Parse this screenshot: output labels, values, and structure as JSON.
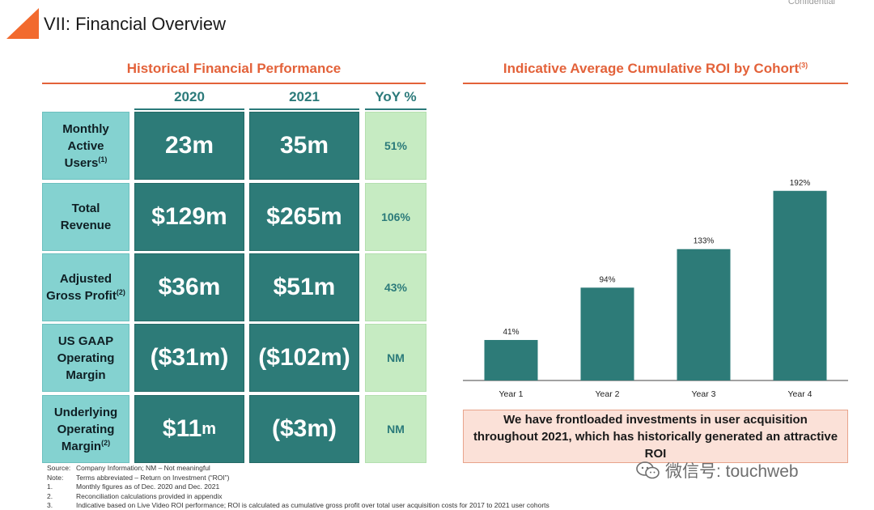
{
  "header": {
    "title": "VII: Financial Overview",
    "confidential": "Confidential",
    "brand_color": "#f26a2e"
  },
  "left_panel": {
    "title": "Historical Financial Performance",
    "columns": [
      "2020",
      "2021",
      "YoY %"
    ],
    "rows": [
      {
        "label_lines": [
          "Monthly",
          "Active",
          "Users"
        ],
        "label_sup": "(1)",
        "v2020": "23m",
        "v2021": "35m",
        "yoy": "51%"
      },
      {
        "label_lines": [
          "Total",
          "Revenue"
        ],
        "label_sup": "",
        "v2020": "$129m",
        "v2021": "$265m",
        "yoy": "106%"
      },
      {
        "label_lines": [
          "Adjusted",
          "Gross Profit"
        ],
        "label_sup": "(2)",
        "v2020": "$36m",
        "v2021": "$51m",
        "yoy": "43%"
      },
      {
        "label_lines": [
          "US GAAP",
          "Operating",
          "Margin"
        ],
        "label_sup": "",
        "v2020": "($31m)",
        "v2021": "($102m)",
        "yoy": "NM"
      },
      {
        "label_lines": [
          "Underlying",
          "Operating",
          "Margin"
        ],
        "label_sup": "(2)",
        "v2020": "$11",
        "v2020_suffix": "m",
        "v2021": "($3m)",
        "yoy": "NM"
      }
    ]
  },
  "footnotes": [
    {
      "k": "Source:",
      "t": "Company Information; NM – Not meaningful"
    },
    {
      "k": "Note:",
      "t": "Terms abbreviated – Return on Investment (“ROI”)"
    },
    {
      "k": "1.",
      "t": "Monthly figures as of Dec. 2020 and Dec. 2021"
    },
    {
      "k": "2.",
      "t": "Reconciliation calculations provided in appendix"
    },
    {
      "k": "3.",
      "t": "Indicative based on Live Video ROI performance; ROI is calculated as cumulative gross profit over total user acquisition costs for 2017 to 2021 user cohorts"
    }
  ],
  "right_panel": {
    "title": "Indicative Average Cumulative ROI by Cohort",
    "title_sup": "(3)",
    "callout": "We have frontloaded investments in user acquisition throughout 2021, which has historically generated an attractive ROI"
  },
  "chart_data": {
    "type": "bar",
    "title": "Indicative Average Cumulative ROI by Cohort",
    "categories": [
      "Year 1",
      "Year 2",
      "Year 3",
      "Year 4"
    ],
    "values": [
      41,
      94,
      133,
      192
    ],
    "data_labels": [
      "41%",
      "94%",
      "133%",
      "192%"
    ],
    "xlabel": "",
    "ylabel": "",
    "ylim": [
      0,
      200
    ],
    "bar_color": "#2d7b78"
  },
  "watermark": {
    "text": "微信号: touchweb"
  }
}
